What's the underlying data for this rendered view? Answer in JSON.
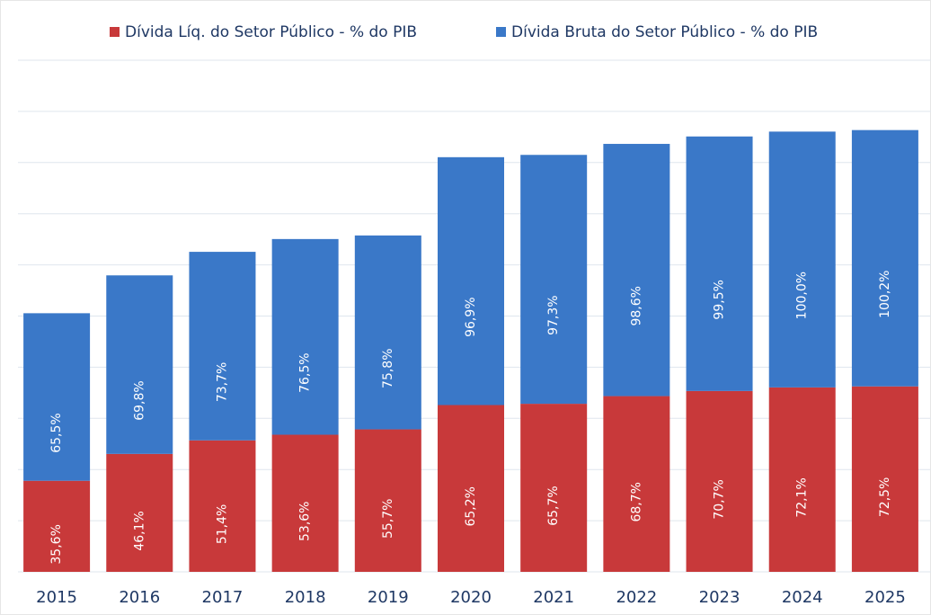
{
  "chart_data": {
    "type": "stacked_bar",
    "categories": [
      "2015",
      "2016",
      "2017",
      "2018",
      "2019",
      "2020",
      "2021",
      "2022",
      "2023",
      "2024",
      "2025"
    ],
    "series": [
      {
        "name": "Dívida Líq. do Setor Público - % do PIB",
        "color": "#c8393a",
        "values": [
          35.6,
          46.1,
          51.4,
          53.6,
          55.7,
          65.2,
          65.7,
          68.7,
          70.7,
          72.1,
          72.5
        ],
        "value_labels": [
          "35,6%",
          "46,1%",
          "51,4%",
          "53,6%",
          "55,7%",
          "65,2%",
          "65,7%",
          "68,7%",
          "70,7%",
          "72,1%",
          "72,5%"
        ]
      },
      {
        "name": "Dívida Bruta do Setor Público - % do PIB",
        "color": "#3a78c8",
        "values": [
          65.5,
          69.8,
          73.7,
          76.5,
          75.8,
          96.9,
          97.3,
          98.6,
          99.5,
          100.0,
          100.2
        ],
        "value_labels": [
          "65,5%",
          "69,8%",
          "73,7%",
          "76,5%",
          "75,8%",
          "96,9%",
          "97,3%",
          "98,6%",
          "99,5%",
          "100,0%",
          "100,2%"
        ]
      }
    ],
    "ylim": [
      0,
      200
    ],
    "yticks": [
      0,
      20,
      40,
      60,
      80,
      100,
      120,
      140,
      160,
      180,
      200
    ],
    "grid": true,
    "legend": "top"
  }
}
